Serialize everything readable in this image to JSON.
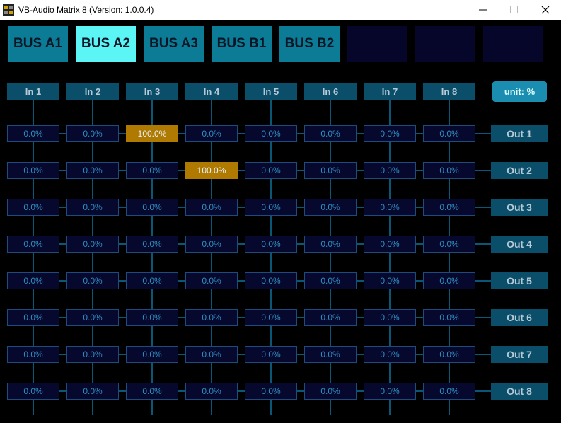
{
  "window": {
    "title": "VB-Audio Matrix 8 (Version: 1.0.0.4)"
  },
  "tabs": [
    {
      "label": "BUS A1",
      "active": false
    },
    {
      "label": "BUS A2",
      "active": true
    },
    {
      "label": "BUS A3",
      "active": false
    },
    {
      "label": "BUS B1",
      "active": false
    },
    {
      "label": "BUS B2",
      "active": false
    }
  ],
  "inputs": [
    "In 1",
    "In 2",
    "In 3",
    "In 4",
    "In 5",
    "In 6",
    "In 7",
    "In 8"
  ],
  "unit_button": "unit: %",
  "outputs": [
    "Out 1",
    "Out 2",
    "Out 3",
    "Out 4",
    "Out 5",
    "Out 6",
    "Out 7",
    "Out 8"
  ],
  "matrix": [
    [
      "0.0%",
      "0.0%",
      "100.0%",
      "0.0%",
      "0.0%",
      "0.0%",
      "0.0%",
      "0.0%"
    ],
    [
      "0.0%",
      "0.0%",
      "0.0%",
      "100.0%",
      "0.0%",
      "0.0%",
      "0.0%",
      "0.0%"
    ],
    [
      "0.0%",
      "0.0%",
      "0.0%",
      "0.0%",
      "0.0%",
      "0.0%",
      "0.0%",
      "0.0%"
    ],
    [
      "0.0%",
      "0.0%",
      "0.0%",
      "0.0%",
      "0.0%",
      "0.0%",
      "0.0%",
      "0.0%"
    ],
    [
      "0.0%",
      "0.0%",
      "0.0%",
      "0.0%",
      "0.0%",
      "0.0%",
      "0.0%",
      "0.0%"
    ],
    [
      "0.0%",
      "0.0%",
      "0.0%",
      "0.0%",
      "0.0%",
      "0.0%",
      "0.0%",
      "0.0%"
    ],
    [
      "0.0%",
      "0.0%",
      "0.0%",
      "0.0%",
      "0.0%",
      "0.0%",
      "0.0%",
      "0.0%"
    ],
    [
      "0.0%",
      "0.0%",
      "0.0%",
      "0.0%",
      "0.0%",
      "0.0%",
      "0.0%",
      "0.0%"
    ]
  ]
}
